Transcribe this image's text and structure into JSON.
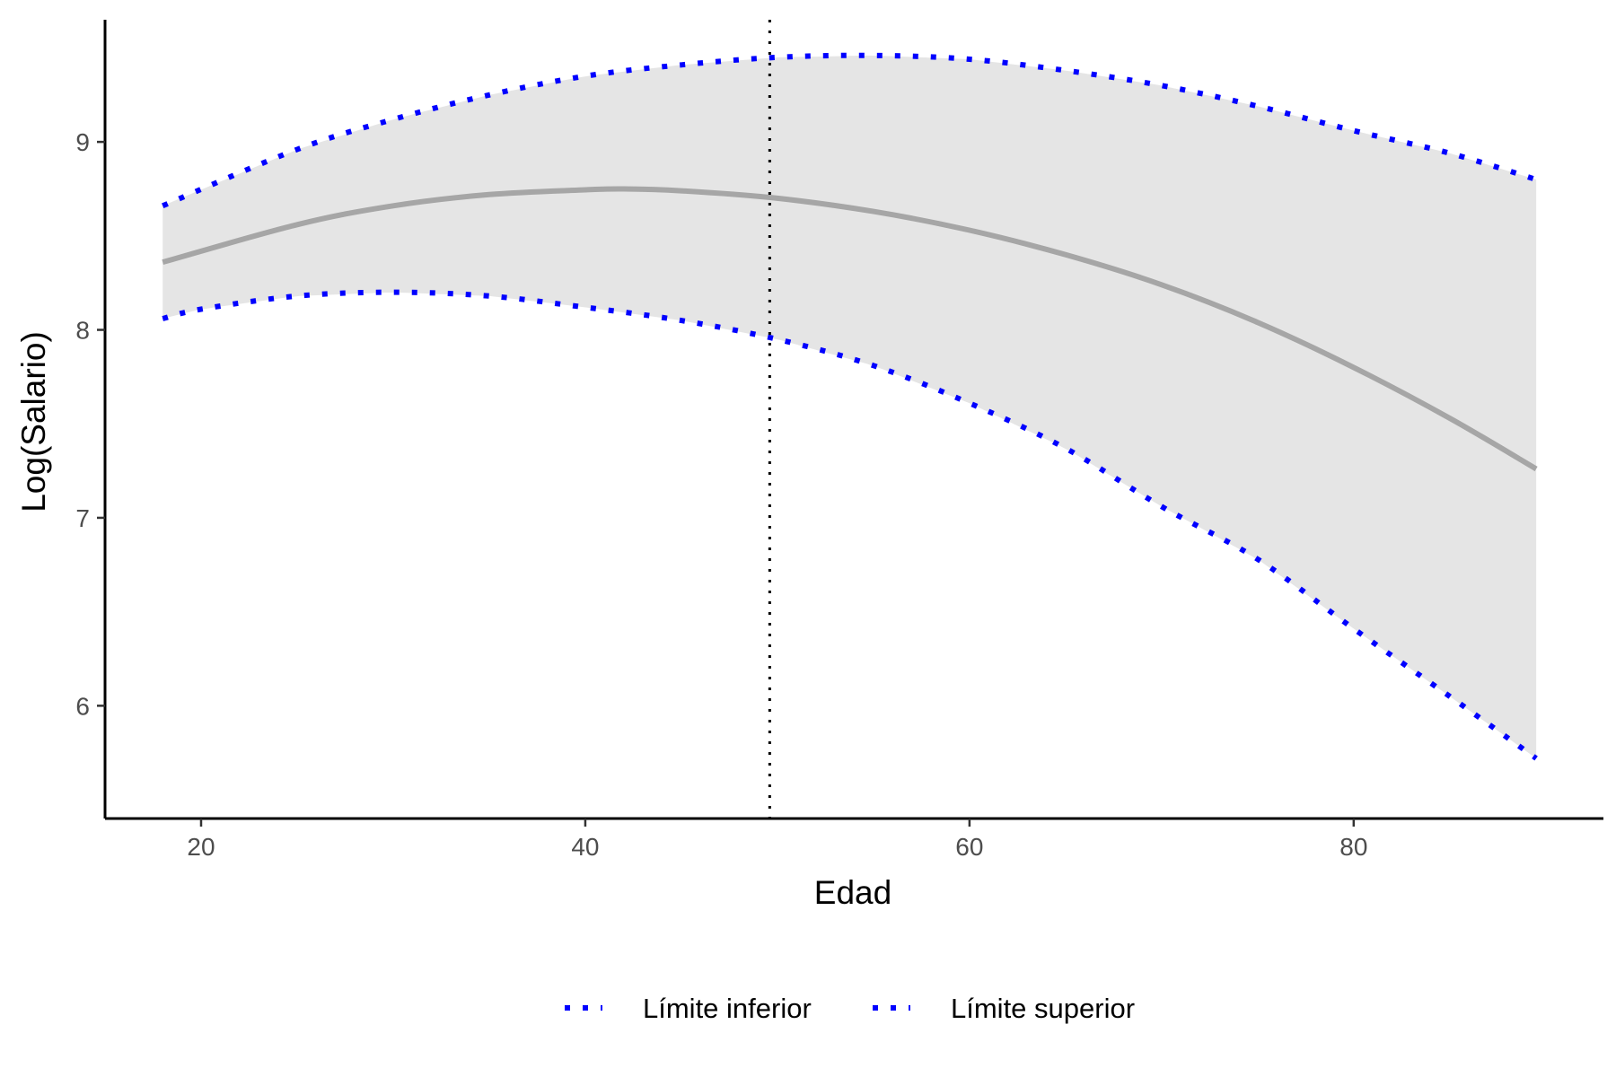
{
  "chart_data": {
    "type": "line",
    "xlabel": "Edad",
    "ylabel": "Log(Salario)",
    "xlim": [
      15,
      93
    ],
    "ylim": [
      5.4,
      9.65
    ],
    "x_ticks": [
      20,
      40,
      60,
      80
    ],
    "y_ticks": [
      6,
      7,
      8,
      9
    ],
    "grid": false,
    "legend_position": "bottom",
    "vline": {
      "x": 49.6,
      "style": "dotted",
      "color": "#000000"
    },
    "band_color": "#e5e5e5",
    "series": [
      {
        "key": "fit",
        "style": "solid",
        "color": "#a6a6a6",
        "x": [
          18,
          25,
          30,
          35,
          40,
          42,
          45,
          50,
          55,
          60,
          65,
          70,
          75,
          80,
          85,
          89.5
        ],
        "y": [
          8.36,
          8.56,
          8.66,
          8.72,
          8.745,
          8.75,
          8.74,
          8.7,
          8.63,
          8.53,
          8.4,
          8.24,
          8.04,
          7.8,
          7.53,
          7.26
        ]
      },
      {
        "key": "upper",
        "name": "Límite superior",
        "style": "dotted",
        "color": "#0000ff",
        "x": [
          18,
          25,
          30,
          35,
          40,
          45,
          50,
          55,
          60,
          65,
          70,
          75,
          80,
          85,
          89.5
        ],
        "y": [
          8.66,
          8.96,
          9.12,
          9.25,
          9.35,
          9.41,
          9.45,
          9.46,
          9.44,
          9.38,
          9.3,
          9.19,
          9.06,
          8.94,
          8.8
        ]
      },
      {
        "key": "lower",
        "name": "Límite inferior",
        "style": "dotted",
        "color": "#0000ff",
        "x": [
          18,
          20,
          25,
          30,
          35,
          40,
          45,
          50,
          55,
          60,
          65,
          70,
          75,
          80,
          85,
          89.5
        ],
        "y": [
          8.06,
          8.11,
          8.18,
          8.2,
          8.18,
          8.12,
          8.05,
          7.95,
          7.81,
          7.61,
          7.37,
          7.06,
          6.78,
          6.41,
          6.05,
          5.72
        ]
      }
    ],
    "legend": [
      "Límite inferior",
      "Límite superior"
    ]
  }
}
